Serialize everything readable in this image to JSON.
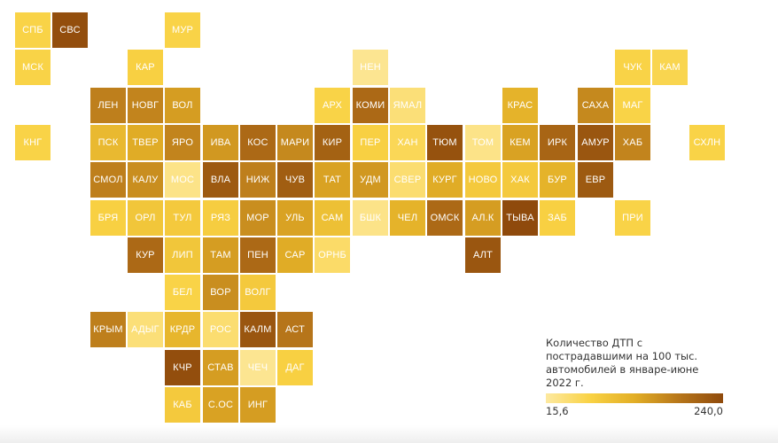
{
  "chart_data": {
    "type": "heatmap",
    "legend": {
      "title": "Количество ДТП с пострадавшими на 100 тыс. автомобилей в январе-июне 2022 г.",
      "min_label": "15,6",
      "max_label": "240,0",
      "min": 15.6,
      "max": 240.0
    },
    "cells": [
      {
        "label": "СПБ",
        "row": 0,
        "col": 0,
        "value": 70
      },
      {
        "label": "СВС",
        "row": 0,
        "col": 1,
        "value": 235
      },
      {
        "label": "МУР",
        "row": 0,
        "col": 4,
        "value": 70
      },
      {
        "label": "МСК",
        "row": 1,
        "col": 0,
        "value": 70
      },
      {
        "label": "КАР",
        "row": 1,
        "col": 3,
        "value": 75
      },
      {
        "label": "НЕН",
        "row": 1,
        "col": 9,
        "value": 25
      },
      {
        "label": "ЧУК",
        "row": 1,
        "col": 16,
        "value": 70
      },
      {
        "label": "КАМ",
        "row": 1,
        "col": 17,
        "value": 65
      },
      {
        "label": "ЛЕН",
        "row": 2,
        "col": 2,
        "value": 175
      },
      {
        "label": "НОВГ",
        "row": 2,
        "col": 3,
        "value": 170
      },
      {
        "label": "ВОЛ",
        "row": 2,
        "col": 4,
        "value": 145
      },
      {
        "label": "АРХ",
        "row": 2,
        "col": 8,
        "value": 70
      },
      {
        "label": "КОМИ",
        "row": 2,
        "col": 9,
        "value": 200
      },
      {
        "label": "ЯМАЛ",
        "row": 2,
        "col": 10,
        "value": 40
      },
      {
        "label": "КРАС",
        "row": 2,
        "col": 13,
        "value": 120
      },
      {
        "label": "САХА",
        "row": 2,
        "col": 15,
        "value": 165
      },
      {
        "label": "МАГ",
        "row": 2,
        "col": 16,
        "value": 70
      },
      {
        "label": "КНГ",
        "row": 3,
        "col": 0,
        "value": 70
      },
      {
        "label": "ПСК",
        "row": 3,
        "col": 2,
        "value": 110
      },
      {
        "label": "ТВЕР",
        "row": 3,
        "col": 3,
        "value": 130
      },
      {
        "label": "ЯРО",
        "row": 3,
        "col": 4,
        "value": 170
      },
      {
        "label": "ИВА",
        "row": 3,
        "col": 5,
        "value": 150
      },
      {
        "label": "КОС",
        "row": 3,
        "col": 6,
        "value": 200
      },
      {
        "label": "МАРИ",
        "row": 3,
        "col": 7,
        "value": 165
      },
      {
        "label": "КИР",
        "row": 3,
        "col": 8,
        "value": 210
      },
      {
        "label": "ПЕР",
        "row": 3,
        "col": 9,
        "value": 75
      },
      {
        "label": "ХАН",
        "row": 3,
        "col": 10,
        "value": 60
      },
      {
        "label": "ТЮМ",
        "row": 3,
        "col": 11,
        "value": 230
      },
      {
        "label": "ТОМ",
        "row": 3,
        "col": 12,
        "value": 30
      },
      {
        "label": "КЕМ",
        "row": 3,
        "col": 13,
        "value": 140
      },
      {
        "label": "ИРК",
        "row": 3,
        "col": 14,
        "value": 205
      },
      {
        "label": "АМУР",
        "row": 3,
        "col": 15,
        "value": 225
      },
      {
        "label": "ХАБ",
        "row": 3,
        "col": 16,
        "value": 170
      },
      {
        "label": "СХЛН",
        "row": 3,
        "col": 18,
        "value": 70
      },
      {
        "label": "СМОЛ",
        "row": 4,
        "col": 2,
        "value": 175
      },
      {
        "label": "КАЛУ",
        "row": 4,
        "col": 3,
        "value": 160
      },
      {
        "label": "МОС",
        "row": 4,
        "col": 4,
        "value": 30
      },
      {
        "label": "ВЛА",
        "row": 4,
        "col": 5,
        "value": 220
      },
      {
        "label": "НИЖ",
        "row": 4,
        "col": 6,
        "value": 175
      },
      {
        "label": "ЧУВ",
        "row": 4,
        "col": 7,
        "value": 215
      },
      {
        "label": "ТАТ",
        "row": 4,
        "col": 8,
        "value": 140
      },
      {
        "label": "УДМ",
        "row": 4,
        "col": 9,
        "value": 150
      },
      {
        "label": "СВЕР",
        "row": 4,
        "col": 10,
        "value": 45
      },
      {
        "label": "КУРГ",
        "row": 4,
        "col": 11,
        "value": 130
      },
      {
        "label": "НОВО",
        "row": 4,
        "col": 12,
        "value": 85
      },
      {
        "label": "ХАК",
        "row": 4,
        "col": 13,
        "value": 85
      },
      {
        "label": "БУР",
        "row": 4,
        "col": 14,
        "value": 120
      },
      {
        "label": "ЕВР",
        "row": 4,
        "col": 15,
        "value": 220
      },
      {
        "label": "БРЯ",
        "row": 5,
        "col": 2,
        "value": 75
      },
      {
        "label": "ОРЛ",
        "row": 5,
        "col": 3,
        "value": 90
      },
      {
        "label": "ТУЛ",
        "row": 5,
        "col": 4,
        "value": 85
      },
      {
        "label": "РЯЗ",
        "row": 5,
        "col": 5,
        "value": 80
      },
      {
        "label": "МОР",
        "row": 5,
        "col": 6,
        "value": 160
      },
      {
        "label": "УЛЬ",
        "row": 5,
        "col": 7,
        "value": 140
      },
      {
        "label": "САМ",
        "row": 5,
        "col": 8,
        "value": 100
      },
      {
        "label": "БШК",
        "row": 5,
        "col": 9,
        "value": 30
      },
      {
        "label": "ЧЕЛ",
        "row": 5,
        "col": 10,
        "value": 120
      },
      {
        "label": "ОМСК",
        "row": 5,
        "col": 11,
        "value": 200
      },
      {
        "label": "АЛ.К",
        "row": 5,
        "col": 12,
        "value": 145
      },
      {
        "label": "ТЫВА",
        "row": 5,
        "col": 13,
        "value": 240
      },
      {
        "label": "ЗАБ",
        "row": 5,
        "col": 14,
        "value": 75
      },
      {
        "label": "ПРИ",
        "row": 5,
        "col": 16,
        "value": 70
      },
      {
        "label": "КУР",
        "row": 6,
        "col": 3,
        "value": 200
      },
      {
        "label": "ЛИП",
        "row": 6,
        "col": 4,
        "value": 90
      },
      {
        "label": "ТАМ",
        "row": 6,
        "col": 5,
        "value": 145
      },
      {
        "label": "ПЕН",
        "row": 6,
        "col": 6,
        "value": 200
      },
      {
        "label": "САР",
        "row": 6,
        "col": 7,
        "value": 130
      },
      {
        "label": "ОРНБ",
        "row": 6,
        "col": 8,
        "value": 50
      },
      {
        "label": "АЛТ",
        "row": 6,
        "col": 12,
        "value": 225
      },
      {
        "label": "БЕЛ",
        "row": 7,
        "col": 4,
        "value": 70
      },
      {
        "label": "ВОР",
        "row": 7,
        "col": 5,
        "value": 160
      },
      {
        "label": "ВОЛГ",
        "row": 7,
        "col": 6,
        "value": 85
      },
      {
        "label": "КРЫМ",
        "row": 8,
        "col": 2,
        "value": 175
      },
      {
        "label": "АДЫГ",
        "row": 8,
        "col": 3,
        "value": 40
      },
      {
        "label": "КРДР",
        "row": 8,
        "col": 4,
        "value": 115
      },
      {
        "label": "РОС",
        "row": 8,
        "col": 5,
        "value": 45
      },
      {
        "label": "КАЛМ",
        "row": 8,
        "col": 6,
        "value": 225
      },
      {
        "label": "АСТ",
        "row": 8,
        "col": 7,
        "value": 185
      },
      {
        "label": "КЧР",
        "row": 9,
        "col": 4,
        "value": 235
      },
      {
        "label": "СТАВ",
        "row": 9,
        "col": 5,
        "value": 145
      },
      {
        "label": "ЧЕЧ",
        "row": 9,
        "col": 6,
        "value": 25
      },
      {
        "label": "ДАГ",
        "row": 9,
        "col": 7,
        "value": 75
      },
      {
        "label": "КАБ",
        "row": 10,
        "col": 4,
        "value": 85
      },
      {
        "label": "С.ОС",
        "row": 10,
        "col": 5,
        "value": 140
      },
      {
        "label": "ИНГ",
        "row": 10,
        "col": 6,
        "value": 145
      }
    ]
  }
}
